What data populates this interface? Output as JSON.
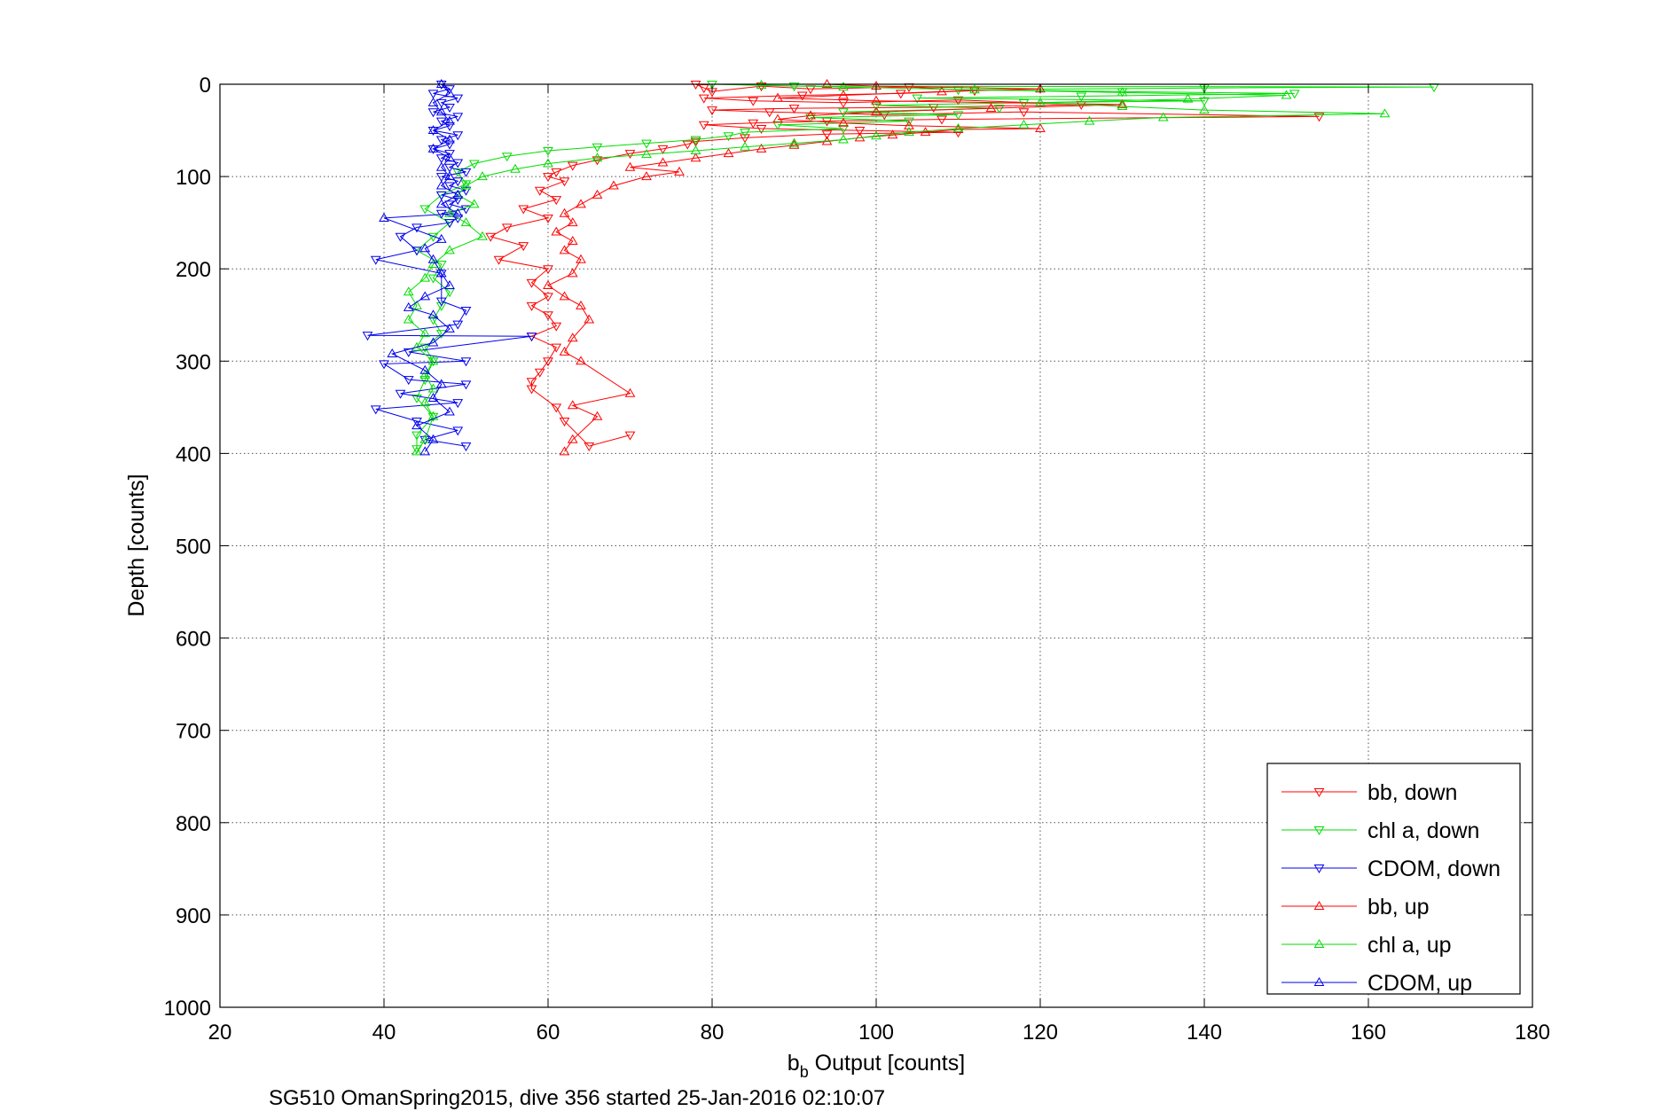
{
  "chart_data": {
    "type": "scatter",
    "xlabel_main": "b",
    "xlabel_sub": "b",
    "xlabel_rest": " Output [counts]",
    "ylabel": "Depth [counts]",
    "caption": "SG510 OmanSpring2015, dive 356 started 25-Jan-2016 02:10:07",
    "xlim": [
      20,
      180
    ],
    "ylim": [
      0,
      1000
    ],
    "y_reversed": true,
    "grid": true,
    "legend_position": "bottom-right",
    "x_ticks": [
      "20",
      "40",
      "60",
      "80",
      "100",
      "120",
      "140",
      "160",
      "180"
    ],
    "y_ticks": [
      "0",
      "100",
      "200",
      "300",
      "400",
      "500",
      "600",
      "700",
      "800",
      "900",
      "1000"
    ],
    "series": [
      {
        "name": "bb, down",
        "color": "#ff0000",
        "marker": "triangle-down",
        "lines": true,
        "points": [
          [
            78,
            0
          ],
          [
            79,
            4
          ],
          [
            80,
            8
          ],
          [
            86,
            2
          ],
          [
            92,
            5
          ],
          [
            104,
            3
          ],
          [
            112,
            7
          ],
          [
            103,
            10
          ],
          [
            91,
            12
          ],
          [
            79,
            15
          ],
          [
            85,
            18
          ],
          [
            96,
            20
          ],
          [
            110,
            17
          ],
          [
            125,
            22
          ],
          [
            107,
            25
          ],
          [
            90,
            26
          ],
          [
            80,
            28
          ],
          [
            87,
            30
          ],
          [
            101,
            33
          ],
          [
            118,
            30
          ],
          [
            154,
            35
          ],
          [
            108,
            38
          ],
          [
            94,
            40
          ],
          [
            85,
            42
          ],
          [
            79,
            44
          ],
          [
            86,
            48
          ],
          [
            98,
            50
          ],
          [
            110,
            52
          ],
          [
            94,
            54
          ],
          [
            84,
            58
          ],
          [
            78,
            62
          ],
          [
            77,
            65
          ],
          [
            74,
            70
          ],
          [
            70,
            75
          ],
          [
            66,
            82
          ],
          [
            63,
            88
          ],
          [
            61,
            95
          ],
          [
            60,
            100
          ],
          [
            62,
            105
          ],
          [
            59,
            115
          ],
          [
            61,
            125
          ],
          [
            57,
            135
          ],
          [
            60,
            145
          ],
          [
            55,
            155
          ],
          [
            53,
            165
          ],
          [
            57,
            175
          ],
          [
            54,
            190
          ],
          [
            60,
            200
          ],
          [
            58,
            215
          ],
          [
            60,
            230
          ],
          [
            58,
            240
          ],
          [
            60,
            250
          ],
          [
            61,
            262
          ],
          [
            58,
            273
          ],
          [
            61,
            285
          ],
          [
            60,
            300
          ],
          [
            59,
            312
          ],
          [
            58,
            322
          ],
          [
            58,
            330
          ],
          [
            61,
            350
          ],
          [
            62,
            365
          ],
          [
            65,
            392
          ],
          [
            70,
            380
          ]
        ]
      },
      {
        "name": "chl a, down",
        "color": "#00dd00",
        "marker": "triangle-down",
        "lines": true,
        "points": [
          [
            80,
            0
          ],
          [
            90,
            2
          ],
          [
            168,
            3
          ],
          [
            140,
            4
          ],
          [
            110,
            6
          ],
          [
            130,
            8
          ],
          [
            151,
            10
          ],
          [
            125,
            13
          ],
          [
            105,
            15
          ],
          [
            140,
            18
          ],
          [
            118,
            20
          ],
          [
            100,
            23
          ],
          [
            115,
            26
          ],
          [
            96,
            30
          ],
          [
            110,
            33
          ],
          [
            92,
            36
          ],
          [
            104,
            40
          ],
          [
            88,
            44
          ],
          [
            96,
            48
          ],
          [
            84,
            52
          ],
          [
            82,
            56
          ],
          [
            78,
            60
          ],
          [
            72,
            64
          ],
          [
            66,
            68
          ],
          [
            60,
            72
          ],
          [
            55,
            78
          ],
          [
            51,
            86
          ],
          [
            49,
            95
          ],
          [
            50,
            108
          ],
          [
            47,
            120
          ],
          [
            45,
            135
          ],
          [
            48,
            150
          ],
          [
            46,
            165
          ],
          [
            44,
            180
          ],
          [
            47,
            195
          ],
          [
            46,
            210
          ],
          [
            48,
            225
          ],
          [
            47,
            240
          ],
          [
            46,
            255
          ],
          [
            47,
            270
          ],
          [
            45,
            285
          ],
          [
            46,
            300
          ],
          [
            45,
            320
          ],
          [
            44,
            340
          ],
          [
            46,
            360
          ],
          [
            44,
            380
          ],
          [
            44,
            395
          ]
        ]
      },
      {
        "name": "CDOM, down",
        "color": "#0000ee",
        "marker": "triangle-down",
        "lines": true,
        "points": [
          [
            47,
            0
          ],
          [
            48,
            5
          ],
          [
            46,
            10
          ],
          [
            49,
            15
          ],
          [
            47,
            20
          ],
          [
            48,
            25
          ],
          [
            46,
            30
          ],
          [
            49,
            35
          ],
          [
            47,
            40
          ],
          [
            48,
            45
          ],
          [
            46,
            50
          ],
          [
            49,
            55
          ],
          [
            47,
            60
          ],
          [
            48,
            65
          ],
          [
            46,
            70
          ],
          [
            48,
            75
          ],
          [
            47,
            80
          ],
          [
            49,
            85
          ],
          [
            48,
            90
          ],
          [
            50,
            95
          ],
          [
            47,
            100
          ],
          [
            49,
            105
          ],
          [
            48,
            110
          ],
          [
            50,
            115
          ],
          [
            47,
            120
          ],
          [
            49,
            125
          ],
          [
            48,
            130
          ],
          [
            50,
            135
          ],
          [
            47,
            140
          ],
          [
            49,
            145
          ],
          [
            48,
            150
          ],
          [
            44,
            155
          ],
          [
            42,
            165
          ],
          [
            44,
            180
          ],
          [
            39,
            190
          ],
          [
            47,
            205
          ],
          [
            47,
            235
          ],
          [
            50,
            245
          ],
          [
            49,
            260
          ],
          [
            38,
            272
          ],
          [
            58,
            273
          ],
          [
            43,
            290
          ],
          [
            50,
            300
          ],
          [
            40,
            303
          ],
          [
            43,
            320
          ],
          [
            50,
            325
          ],
          [
            42,
            335
          ],
          [
            49,
            345
          ],
          [
            39,
            352
          ],
          [
            44,
            365
          ],
          [
            49,
            375
          ],
          [
            45,
            385
          ],
          [
            50,
            392
          ]
        ]
      },
      {
        "name": "bb, up",
        "color": "#ff0000",
        "marker": "triangle-up",
        "lines": true,
        "points": [
          [
            62,
            398
          ],
          [
            63,
            385
          ],
          [
            66,
            360
          ],
          [
            63,
            348
          ],
          [
            70,
            335
          ],
          [
            64,
            300
          ],
          [
            62,
            290
          ],
          [
            63,
            275
          ],
          [
            65,
            255
          ],
          [
            64,
            240
          ],
          [
            62,
            230
          ],
          [
            60,
            218
          ],
          [
            63,
            205
          ],
          [
            64,
            190
          ],
          [
            62,
            180
          ],
          [
            63,
            170
          ],
          [
            61,
            160
          ],
          [
            63,
            150
          ],
          [
            62,
            140
          ],
          [
            64,
            130
          ],
          [
            66,
            120
          ],
          [
            68,
            110
          ],
          [
            72,
            100
          ],
          [
            76,
            95
          ],
          [
            70,
            90
          ],
          [
            74,
            85
          ],
          [
            78,
            80
          ],
          [
            82,
            75
          ],
          [
            86,
            70
          ],
          [
            90,
            66
          ],
          [
            94,
            62
          ],
          [
            98,
            58
          ],
          [
            102,
            55
          ],
          [
            106,
            52
          ],
          [
            110,
            49
          ],
          [
            120,
            48
          ],
          [
            104,
            45
          ],
          [
            96,
            42
          ],
          [
            88,
            38
          ],
          [
            92,
            34
          ],
          [
            100,
            30
          ],
          [
            114,
            26
          ],
          [
            130,
            22
          ],
          [
            100,
            18
          ],
          [
            88,
            15
          ],
          [
            96,
            12
          ],
          [
            108,
            8
          ],
          [
            120,
            5
          ],
          [
            100,
            2
          ],
          [
            94,
            0
          ]
        ]
      },
      {
        "name": "chl a, up",
        "color": "#00dd00",
        "marker": "triangle-up",
        "lines": true,
        "points": [
          [
            44,
            398
          ],
          [
            45,
            385
          ],
          [
            46,
            360
          ],
          [
            45,
            345
          ],
          [
            46,
            330
          ],
          [
            45,
            315
          ],
          [
            46,
            300
          ],
          [
            44,
            285
          ],
          [
            45,
            270
          ],
          [
            43,
            255
          ],
          [
            44,
            240
          ],
          [
            43,
            225
          ],
          [
            45,
            210
          ],
          [
            46,
            195
          ],
          [
            48,
            180
          ],
          [
            52,
            165
          ],
          [
            50,
            150
          ],
          [
            48,
            140
          ],
          [
            51,
            130
          ],
          [
            49,
            120
          ],
          [
            50,
            110
          ],
          [
            52,
            100
          ],
          [
            56,
            92
          ],
          [
            60,
            86
          ],
          [
            66,
            80
          ],
          [
            72,
            76
          ],
          [
            78,
            72
          ],
          [
            84,
            68
          ],
          [
            90,
            64
          ],
          [
            96,
            60
          ],
          [
            100,
            56
          ],
          [
            104,
            52
          ],
          [
            110,
            48
          ],
          [
            118,
            44
          ],
          [
            126,
            40
          ],
          [
            135,
            36
          ],
          [
            162,
            32
          ],
          [
            140,
            28
          ],
          [
            130,
            24
          ],
          [
            120,
            20
          ],
          [
            138,
            16
          ],
          [
            150,
            12
          ],
          [
            130,
            9
          ],
          [
            112,
            6
          ],
          [
            96,
            3
          ],
          [
            86,
            1
          ]
        ]
      },
      {
        "name": "CDOM, up",
        "color": "#0000ee",
        "marker": "triangle-up",
        "lines": true,
        "points": [
          [
            45,
            398
          ],
          [
            46,
            385
          ],
          [
            44,
            370
          ],
          [
            48,
            355
          ],
          [
            46,
            340
          ],
          [
            47,
            325
          ],
          [
            45,
            310
          ],
          [
            41,
            292
          ],
          [
            46,
            280
          ],
          [
            48,
            265
          ],
          [
            46,
            250
          ],
          [
            43,
            242
          ],
          [
            45,
            230
          ],
          [
            48,
            218
          ],
          [
            47,
            205
          ],
          [
            46,
            190
          ],
          [
            45,
            178
          ],
          [
            47,
            168
          ],
          [
            40,
            145
          ],
          [
            49,
            140
          ],
          [
            47,
            130
          ],
          [
            49,
            120
          ],
          [
            47,
            110
          ],
          [
            48,
            100
          ],
          [
            47,
            90
          ],
          [
            48,
            80
          ],
          [
            46,
            70
          ],
          [
            48,
            60
          ],
          [
            46,
            50
          ],
          [
            48,
            40
          ],
          [
            47,
            30
          ],
          [
            46,
            20
          ],
          [
            48,
            10
          ],
          [
            47,
            0
          ]
        ]
      }
    ]
  }
}
